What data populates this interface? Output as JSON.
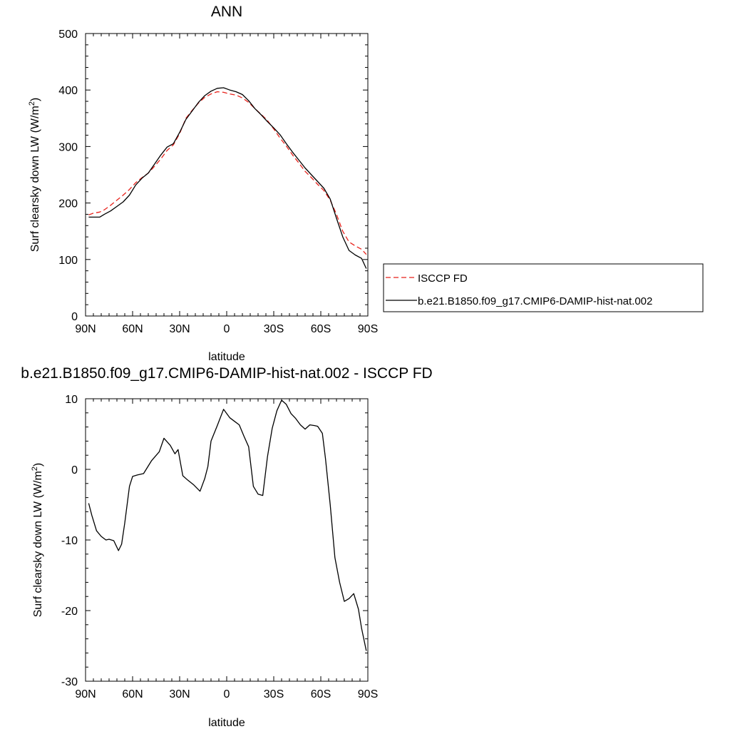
{
  "chart_data": [
    {
      "type": "line",
      "title": "ANN",
      "xlabel": "latitude",
      "ylabel": "Surf clearsky down LW (W/m",
      "ylabel_sup": "2",
      "ylabel_close": ")",
      "xlim": [
        -90,
        90
      ],
      "ylim": [
        0,
        500
      ],
      "xticks": [
        -90,
        -60,
        -30,
        0,
        30,
        60,
        90
      ],
      "xtick_labels": [
        "90N",
        "60N",
        "30N",
        "0",
        "30S",
        "60S",
        "90S"
      ],
      "yticks": [
        0,
        100,
        200,
        300,
        400,
        500
      ],
      "ytick_labels": [
        "0",
        "100",
        "200",
        "300",
        "400",
        "500"
      ],
      "grid": false,
      "legend_position": "right",
      "x": [
        -88,
        -85,
        -81,
        -78,
        -74,
        -70,
        -66,
        -62,
        -58,
        -54,
        -50,
        -46,
        -42,
        -38,
        -34,
        -30,
        -26,
        -22,
        -18,
        -14,
        -10,
        -6,
        -2,
        2,
        6,
        10,
        14,
        18,
        22,
        26,
        30,
        34,
        38,
        42,
        46,
        50,
        54,
        58,
        62,
        66,
        70,
        74,
        78,
        82,
        86,
        89
      ],
      "series": [
        {
          "name": "ISCCP FD",
          "color": "#e8221b",
          "dash": "dashed",
          "values": [
            179,
            182,
            184,
            188,
            196,
            205,
            214,
            224,
            236,
            245,
            253,
            265,
            278,
            293,
            303,
            323,
            350,
            364,
            377,
            387,
            393,
            397,
            396,
            393,
            391,
            386,
            378,
            367,
            357,
            346,
            331,
            315,
            301,
            285,
            271,
            256,
            245,
            233,
            222,
            205,
            180,
            150,
            131,
            124,
            118,
            109
          ]
        },
        {
          "name": "b.e21.B1850.f09_g17.CMIP6-DAMIP-hist-nat.002",
          "color": "#000000",
          "dash": "solid",
          "values": [
            175,
            175,
            175,
            180,
            186,
            194,
            202,
            214,
            232,
            244,
            253,
            269,
            285,
            299,
            305,
            325,
            348,
            363,
            378,
            390,
            398,
            403,
            404,
            400,
            397,
            392,
            381,
            367,
            356,
            344,
            333,
            321,
            305,
            290,
            276,
            262,
            250,
            238,
            226,
            207,
            173,
            140,
            116,
            108,
            102,
            84
          ]
        }
      ]
    },
    {
      "type": "line",
      "title": "b.e21.B1850.f09_g17.CMIP6-DAMIP-hist-nat.002 - ISCCP FD",
      "xlabel": "latitude",
      "ylabel": "Surf clearsky down LW (W/m",
      "ylabel_sup": "2",
      "ylabel_close": ")",
      "xlim": [
        -90,
        90
      ],
      "ylim": [
        -30,
        10
      ],
      "xticks": [
        -90,
        -60,
        -30,
        0,
        30,
        60,
        90
      ],
      "xtick_labels": [
        "90N",
        "60N",
        "30N",
        "0",
        "30S",
        "60S",
        "90S"
      ],
      "yticks": [
        -30,
        -20,
        -10,
        0,
        10
      ],
      "ytick_labels": [
        "-30",
        "-20",
        "-10",
        "0",
        "10"
      ],
      "grid": false,
      "series": [
        {
          "color": "#000000",
          "dash": "solid",
          "x": [
            -88,
            -86,
            -83,
            -80,
            -77,
            -75,
            -72,
            -69,
            -67,
            -65,
            -62,
            -60,
            -57,
            -53,
            -48,
            -43,
            -40,
            -36,
            -33,
            -31,
            -28,
            -25,
            -21,
            -17,
            -14,
            -12,
            -10,
            -6,
            -2,
            2,
            5,
            8,
            11,
            14,
            17,
            20,
            23,
            26,
            29,
            32,
            35,
            38,
            41,
            44,
            47,
            50,
            53,
            56,
            58,
            61,
            63,
            66,
            69,
            72,
            75,
            78,
            81,
            84,
            86,
            89
          ],
          "values": [
            -4.8,
            -6.5,
            -8.7,
            -9.5,
            -10.0,
            -9.9,
            -10.1,
            -11.5,
            -10.6,
            -7.6,
            -2.4,
            -1.0,
            -0.8,
            -0.6,
            1.2,
            2.5,
            4.4,
            3.4,
            2.2,
            2.8,
            -0.9,
            -1.5,
            -2.2,
            -3.1,
            -1.3,
            0.4,
            4.0,
            6.2,
            8.5,
            7.3,
            6.8,
            6.3,
            4.7,
            3.2,
            -2.4,
            -3.5,
            -3.7,
            1.8,
            5.8,
            8.3,
            9.8,
            9.2,
            7.9,
            7.2,
            6.3,
            5.7,
            6.3,
            6.2,
            6.1,
            5.1,
            1.5,
            -5.0,
            -12.5,
            -16.0,
            -18.7,
            -18.3,
            -17.6,
            -19.8,
            -22.5,
            -25.7
          ]
        }
      ]
    }
  ]
}
